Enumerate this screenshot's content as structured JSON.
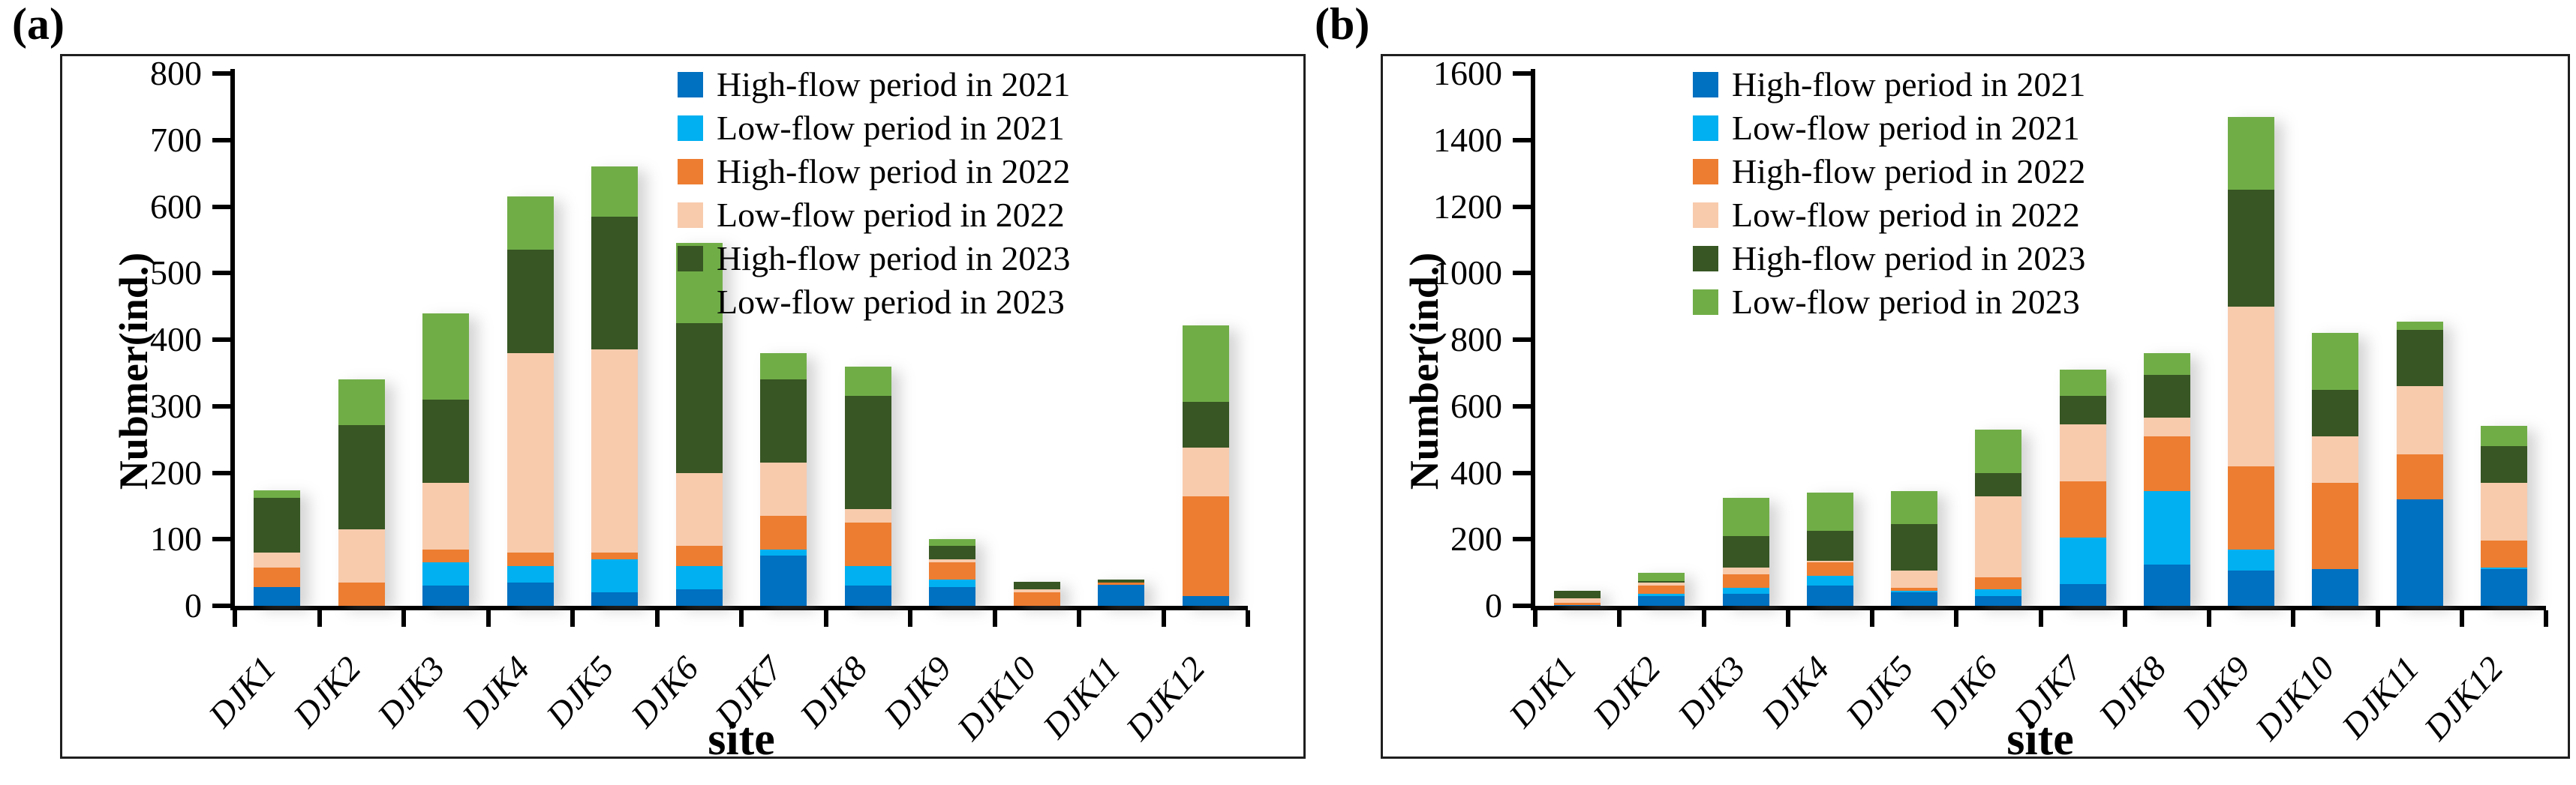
{
  "figure": {
    "background": "#ffffff",
    "panel_a_tag": "(a)",
    "panel_b_tag": "(b)"
  },
  "colors": {
    "high_flow_2021": "#0070C0",
    "low_flow_2021": "#00B0F0",
    "high_flow_2022": "#ED7D31",
    "low_flow_2022": "#F8CBAD",
    "high_flow_2023": "#375623",
    "low_flow_2023": "#70AD47",
    "axis": "#000000",
    "panel_border": "#1f1f1f"
  },
  "chart_data": [
    {
      "type": "bar",
      "stacked": true,
      "title": "(a)",
      "xlabel": "site",
      "ylabel": "Nubmer(ind.)",
      "ylim": [
        0,
        800
      ],
      "ytick_step": 100,
      "yticks": [
        0,
        100,
        200,
        300,
        400,
        500,
        600,
        700,
        800
      ],
      "grid": false,
      "legend_position": "top-right-inside",
      "categories": [
        "DJK1",
        "DJK2",
        "DJK3",
        "DJK4",
        "DJK5",
        "DJK6",
        "DJK7",
        "DJK8",
        "DJK9",
        "DJK10",
        "DJK11",
        "DJK12"
      ],
      "series": [
        {
          "name": "High-flow period in 2021",
          "color": "#0070C0",
          "values": [
            28,
            0,
            30,
            35,
            20,
            25,
            75,
            30,
            28,
            0,
            32,
            15
          ]
        },
        {
          "name": "Low-flow period in 2021",
          "color": "#00B0F0",
          "values": [
            0,
            0,
            35,
            25,
            50,
            35,
            10,
            30,
            12,
            0,
            0,
            0
          ]
        },
        {
          "name": "High-flow period in 2022",
          "color": "#ED7D31",
          "values": [
            30,
            35,
            20,
            20,
            10,
            30,
            50,
            65,
            25,
            20,
            3,
            150
          ]
        },
        {
          "name": "Low-flow period in 2022",
          "color": "#F8CBAD",
          "values": [
            22,
            80,
            100,
            300,
            305,
            110,
            80,
            20,
            5,
            5,
            0,
            73
          ]
        },
        {
          "name": "High-flow period in 2023",
          "color": "#375623",
          "values": [
            82,
            157,
            125,
            155,
            200,
            225,
            125,
            170,
            20,
            11,
            5,
            68
          ]
        },
        {
          "name": "Low-flow period in 2023",
          "color": "#70AD47",
          "values": [
            12,
            68,
            130,
            80,
            75,
            120,
            40,
            45,
            10,
            0,
            0,
            115
          ]
        }
      ]
    },
    {
      "type": "bar",
      "stacked": true,
      "title": "(b)",
      "xlabel": "site",
      "ylabel": "Number(ind.)",
      "ylim": [
        0,
        1600
      ],
      "ytick_step": 200,
      "yticks": [
        0,
        200,
        400,
        600,
        800,
        1000,
        1200,
        1400,
        1600
      ],
      "grid": false,
      "legend_position": "top-left-inside",
      "categories": [
        "DJK1",
        "DJK2",
        "DJK3",
        "DJK4",
        "DJK5",
        "DJK6",
        "DJK7",
        "DJK8",
        "DJK9",
        "DJK10",
        "DJK11",
        "DJK12"
      ],
      "series": [
        {
          "name": "High-flow period in 2021",
          "color": "#0070C0",
          "values": [
            3,
            30,
            35,
            60,
            40,
            30,
            65,
            125,
            105,
            110,
            320,
            110
          ]
        },
        {
          "name": "Low-flow period in 2021",
          "color": "#00B0F0",
          "values": [
            0,
            5,
            20,
            30,
            5,
            20,
            140,
            220,
            65,
            0,
            0,
            5
          ]
        },
        {
          "name": "High-flow period in 2022",
          "color": "#ED7D31",
          "values": [
            5,
            25,
            40,
            40,
            10,
            35,
            170,
            165,
            250,
            260,
            135,
            80
          ]
        },
        {
          "name": "Low-flow period in 2022",
          "color": "#F8CBAD",
          "values": [
            14,
            10,
            20,
            5,
            50,
            245,
            170,
            55,
            480,
            140,
            205,
            175
          ]
        },
        {
          "name": "High-flow period in 2023",
          "color": "#375623",
          "values": [
            23,
            5,
            95,
            90,
            140,
            70,
            85,
            130,
            350,
            140,
            170,
            110
          ]
        },
        {
          "name": "Low-flow period in 2023",
          "color": "#70AD47",
          "values": [
            0,
            25,
            115,
            115,
            100,
            130,
            80,
            65,
            220,
            170,
            25,
            60
          ]
        }
      ]
    }
  ]
}
